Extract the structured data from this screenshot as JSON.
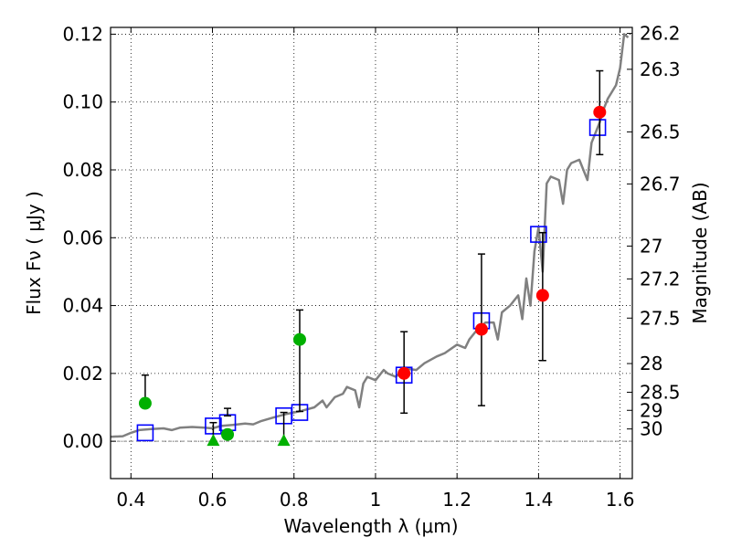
{
  "chart_data": {
    "type": "scatter",
    "title": "",
    "xlabel": "Wavelength  λ (μm)",
    "ylabel": "Flux  Fν  ( μJy )",
    "ylabel_right": "Magnitude (AB)",
    "xlim": [
      0.35,
      1.63
    ],
    "ylim": [
      -0.011,
      0.122
    ],
    "grid": true,
    "x_ticks": [
      0.4,
      0.6,
      0.8,
      1.0,
      1.2,
      1.4,
      1.6
    ],
    "x_tick_labels": [
      "0.4",
      "0.6",
      "0.8",
      "1",
      "1.2",
      "1.4",
      "1.6"
    ],
    "y_ticks": [
      0.0,
      0.02,
      0.04,
      0.06,
      0.08,
      0.1,
      0.12
    ],
    "y_tick_labels": [
      "0.00",
      "0.02",
      "0.04",
      "0.06",
      "0.08",
      "0.10",
      "0.12"
    ],
    "right_ticks": [
      26.2,
      26.3,
      26.5,
      26.7,
      27,
      27.2,
      27.5,
      28,
      28.5,
      29,
      30
    ],
    "right_tick_labels": [
      "26.2",
      "26.3",
      "26.5",
      "26.7",
      "27",
      "27.2",
      "27.5",
      "28",
      "28.5",
      "29",
      "30"
    ],
    "series": [
      {
        "type": "line",
        "color": "#808080",
        "x": [
          0.35,
          0.38,
          0.4,
          0.42,
          0.45,
          0.48,
          0.5,
          0.52,
          0.55,
          0.58,
          0.6,
          0.62,
          0.65,
          0.68,
          0.7,
          0.72,
          0.75,
          0.78,
          0.8,
          0.82,
          0.85,
          0.87,
          0.88,
          0.9,
          0.92,
          0.93,
          0.95,
          0.96,
          0.97,
          0.98,
          1.0,
          1.02,
          1.03,
          1.05,
          1.07,
          1.1,
          1.12,
          1.15,
          1.17,
          1.2,
          1.22,
          1.23,
          1.25,
          1.27,
          1.29,
          1.3,
          1.31,
          1.33,
          1.35,
          1.36,
          1.37,
          1.38,
          1.39,
          1.4,
          1.41,
          1.42,
          1.43,
          1.45,
          1.46,
          1.47,
          1.48,
          1.5,
          1.52,
          1.53,
          1.55,
          1.56,
          1.57,
          1.58,
          1.59,
          1.6,
          1.61,
          1.62
        ],
        "values": [
          0.0013,
          0.0015,
          0.0025,
          0.0033,
          0.0036,
          0.0038,
          0.0033,
          0.004,
          0.0042,
          0.004,
          0.0038,
          0.0045,
          0.0048,
          0.0052,
          0.005,
          0.006,
          0.007,
          0.008,
          0.0085,
          0.009,
          0.01,
          0.012,
          0.01,
          0.013,
          0.014,
          0.016,
          0.015,
          0.01,
          0.017,
          0.019,
          0.018,
          0.021,
          0.02,
          0.019,
          0.0215,
          0.021,
          0.023,
          0.025,
          0.026,
          0.0285,
          0.0275,
          0.03,
          0.033,
          0.035,
          0.035,
          0.03,
          0.038,
          0.04,
          0.043,
          0.036,
          0.048,
          0.04,
          0.056,
          0.063,
          0.05,
          0.076,
          0.078,
          0.077,
          0.07,
          0.08,
          0.082,
          0.083,
          0.077,
          0.088,
          0.094,
          0.098,
          0.101,
          0.103,
          0.105,
          0.11,
          0.12,
          0.119
        ]
      },
      {
        "type": "scatter",
        "marker": "open-square",
        "color": "#0000ff",
        "x": [
          0.435,
          0.602,
          0.637,
          0.775,
          0.814,
          1.07,
          1.26,
          1.4,
          1.545
        ],
        "values": [
          0.0025,
          0.0045,
          0.0055,
          0.0075,
          0.0085,
          0.0195,
          0.0355,
          0.061,
          0.0925
        ]
      },
      {
        "type": "scatter",
        "marker": "circle",
        "color": "#00b000",
        "x": [
          0.435,
          0.637,
          0.814
        ],
        "values": [
          0.0112,
          0.002,
          0.03
        ],
        "err_low": [
          0.0112,
          0.0075,
          0.0088
        ],
        "err_high": [
          0.0195,
          0.0097,
          0.0387
        ]
      },
      {
        "type": "scatter",
        "marker": "triangle",
        "color": "#00b000",
        "x": [
          0.602,
          0.775
        ],
        "values": [
          0.0,
          0.0
        ],
        "err_low": [
          0.0,
          0.0
        ],
        "err_high": [
          0.0055,
          0.0085
        ]
      },
      {
        "type": "scatter",
        "marker": "circle",
        "color": "#ff0000",
        "x": [
          1.07,
          1.26,
          1.41,
          1.55
        ],
        "values": [
          0.02,
          0.033,
          0.043,
          0.097
        ],
        "err_low": [
          0.0083,
          0.0105,
          0.0238,
          0.0845
        ],
        "err_high": [
          0.0323,
          0.0552,
          0.0615,
          0.1092
        ]
      }
    ]
  }
}
